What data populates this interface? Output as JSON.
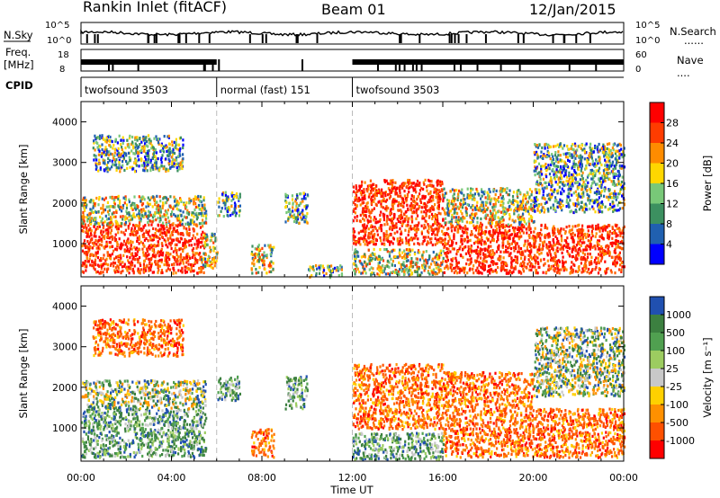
{
  "header": {
    "station": "Rankin Inlet (fitACF)",
    "beam": "Beam 01",
    "date": "12/Jan/2015"
  },
  "top_strip": {
    "left_labels": {
      "nsky": "N.Sky",
      "freq": "Freq.",
      "freq_unit": "[MHz]",
      "cpid": "CPID"
    },
    "right_labels": {
      "nsearch": "N.Search",
      "nave": "Nave"
    },
    "noise_ticks_left": [
      "10^5",
      "10^0"
    ],
    "noise_ticks_right": [
      "10^5",
      "10^0"
    ],
    "freq_ticks": [
      "18",
      "8"
    ],
    "nave_ticks": [
      "60",
      "0"
    ],
    "cpid_segments": [
      {
        "label": "twofsound 3503",
        "start_h": 0,
        "end_h": 6
      },
      {
        "label": "normal (fast) 151",
        "start_h": 6,
        "end_h": 12
      },
      {
        "label": "twofsound 3503",
        "start_h": 12,
        "end_h": 24
      }
    ]
  },
  "chart_data": [
    {
      "type": "heatmap",
      "title": "Power",
      "xlabel": "Time UT",
      "ylabel": "Slant Range [km]",
      "xlim_hours": [
        0,
        24
      ],
      "x_tick_labels": [
        "00:00",
        "04:00",
        "08:00",
        "12:00",
        "16:00",
        "20:00",
        "00:00"
      ],
      "ylim": [
        180,
        4500
      ],
      "y_ticks": [
        1000,
        2000,
        3000,
        4000
      ],
      "colorbar": {
        "label": "Power [dB]",
        "ticks": [
          "28",
          "24",
          "20",
          "16",
          "12",
          "8",
          "4"
        ],
        "colors": [
          "#ff0000",
          "#ff3c00",
          "#ff8c00",
          "#ffd700",
          "#78c878",
          "#3c9060",
          "#2060b0",
          "#0000ff"
        ]
      },
      "echo_regions": [
        {
          "t0": 0.0,
          "t1": 5.5,
          "r0": 300,
          "r1": 1500,
          "level": "high"
        },
        {
          "t0": 0.0,
          "t1": 5.5,
          "r0": 1500,
          "r1": 2200,
          "level": "mid"
        },
        {
          "t0": 0.5,
          "t1": 4.5,
          "r0": 2800,
          "r1": 3700,
          "level": "low"
        },
        {
          "t0": 5.3,
          "t1": 6.0,
          "r0": 400,
          "r1": 1300,
          "level": "mid"
        },
        {
          "t0": 6.0,
          "t1": 7.0,
          "r0": 1700,
          "r1": 2300,
          "level": "low"
        },
        {
          "t0": 7.5,
          "t1": 8.5,
          "r0": 300,
          "r1": 1000,
          "level": "mid"
        },
        {
          "t0": 9.0,
          "t1": 10.0,
          "r0": 1500,
          "r1": 2300,
          "level": "low"
        },
        {
          "t0": 10.0,
          "t1": 11.5,
          "r0": 200,
          "r1": 500,
          "level": "low"
        },
        {
          "t0": 12.0,
          "t1": 16.0,
          "r0": 1000,
          "r1": 2600,
          "level": "high"
        },
        {
          "t0": 12.0,
          "t1": 16.0,
          "r0": 250,
          "r1": 900,
          "level": "mid"
        },
        {
          "t0": 16.0,
          "t1": 24.0,
          "r0": 300,
          "r1": 1500,
          "level": "high"
        },
        {
          "t0": 16.0,
          "t1": 20.0,
          "r0": 1500,
          "r1": 2400,
          "level": "mid"
        },
        {
          "t0": 20.0,
          "t1": 24.0,
          "r0": 1800,
          "r1": 3500,
          "level": "low"
        }
      ]
    },
    {
      "type": "heatmap",
      "title": "Velocity",
      "xlabel": "Time UT",
      "ylabel": "Slant Range [km]",
      "xlim_hours": [
        0,
        24
      ],
      "x_tick_labels": [
        "00:00",
        "04:00",
        "08:00",
        "12:00",
        "16:00",
        "20:00",
        "00:00"
      ],
      "ylim": [
        180,
        4500
      ],
      "y_ticks": [
        1000,
        2000,
        3000,
        4000
      ],
      "colorbar": {
        "label": "Velocity [m s⁻¹]",
        "ticks": [
          "1000",
          "500",
          "100",
          "25",
          "-25",
          "-100",
          "-500",
          "-1000"
        ],
        "colors": [
          "#2050b0",
          "#3c8040",
          "#50a050",
          "#9ccc60",
          "#c8c8c8",
          "#ffd000",
          "#ff9000",
          "#ff5000",
          "#ff0000"
        ]
      },
      "echo_regions": [
        {
          "t0": 0.0,
          "t1": 5.5,
          "r0": 300,
          "r1": 1500,
          "level": "positive"
        },
        {
          "t0": 0.0,
          "t1": 5.5,
          "r0": 1500,
          "r1": 2200,
          "level": "mixed"
        },
        {
          "t0": 0.5,
          "t1": 4.5,
          "r0": 2800,
          "r1": 3700,
          "level": "negative"
        },
        {
          "t0": 6.0,
          "t1": 7.0,
          "r0": 1700,
          "r1": 2300,
          "level": "positive"
        },
        {
          "t0": 7.5,
          "t1": 8.5,
          "r0": 300,
          "r1": 1000,
          "level": "negative"
        },
        {
          "t0": 9.0,
          "t1": 10.0,
          "r0": 1500,
          "r1": 2300,
          "level": "positive"
        },
        {
          "t0": 12.0,
          "t1": 16.0,
          "r0": 1000,
          "r1": 2600,
          "level": "negative"
        },
        {
          "t0": 12.0,
          "t1": 16.0,
          "r0": 250,
          "r1": 900,
          "level": "positive"
        },
        {
          "t0": 16.0,
          "t1": 24.0,
          "r0": 300,
          "r1": 1500,
          "level": "negative"
        },
        {
          "t0": 16.0,
          "t1": 20.0,
          "r0": 1500,
          "r1": 2400,
          "level": "negative"
        },
        {
          "t0": 20.0,
          "t1": 24.0,
          "r0": 1800,
          "r1": 3500,
          "level": "mixed"
        }
      ]
    }
  ]
}
